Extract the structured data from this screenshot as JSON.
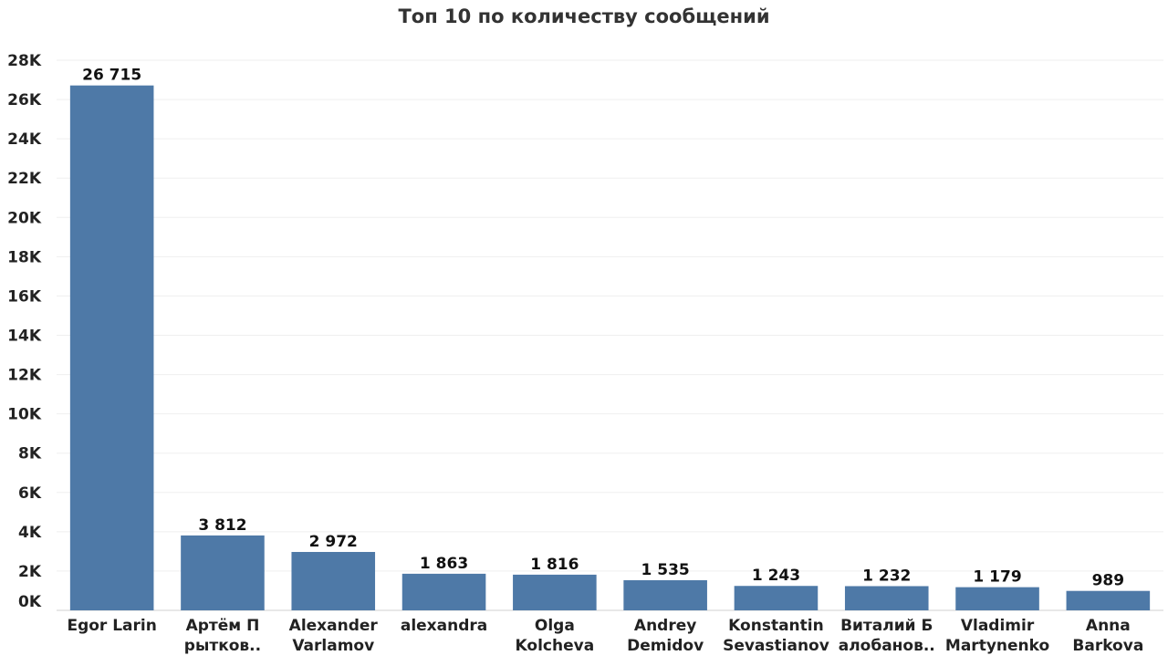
{
  "chart_data": {
    "type": "bar",
    "title": "Топ 10 по количеству сообщений",
    "xlabel": "",
    "ylabel": "",
    "categories": [
      [
        "Egor Larin"
      ],
      [
        "Артём П",
        "рытков.."
      ],
      [
        "Alexander",
        "Varlamov"
      ],
      [
        "alexandra"
      ],
      [
        "Olga",
        "Kolcheva"
      ],
      [
        "Andrey",
        "Demidov"
      ],
      [
        "Konstantin",
        "Sevastianov"
      ],
      [
        "Виталий Б",
        "алобанов.."
      ],
      [
        "Vladimir",
        "Martynenko"
      ],
      [
        "Anna",
        "Barkova"
      ]
    ],
    "values": [
      26715,
      3812,
      2972,
      1863,
      1816,
      1535,
      1243,
      1232,
      1179,
      989
    ],
    "value_labels": [
      "26 715",
      "3 812",
      "2 972",
      "1 863",
      "1 816",
      "1 535",
      "1 243",
      "1 232",
      "1 179",
      "989"
    ],
    "ylim": [
      0,
      28000
    ],
    "yticks": [
      0,
      2000,
      4000,
      6000,
      8000,
      10000,
      12000,
      14000,
      16000,
      18000,
      20000,
      22000,
      24000,
      26000,
      28000
    ],
    "ytick_labels": [
      "0K",
      "2K",
      "4K",
      "6K",
      "8K",
      "10K",
      "12K",
      "14K",
      "16K",
      "18K",
      "20K",
      "22K",
      "24K",
      "26K",
      "28K"
    ],
    "bar_color": "#4e79a7",
    "grid": true,
    "legend": "none"
  }
}
